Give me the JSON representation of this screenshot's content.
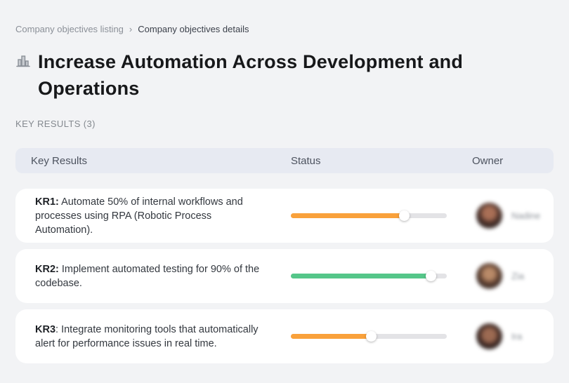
{
  "breadcrumb": {
    "items": [
      {
        "label": "Company objectives listing"
      },
      {
        "label": "Company objectives details"
      }
    ],
    "separator": "›"
  },
  "page": {
    "title": "Increase Automation Across Development and Operations",
    "title_icon": "buildings-icon",
    "section_label": "KEY RESULTS (3)"
  },
  "table": {
    "columns": [
      "Key Results",
      "Status",
      "Owner"
    ],
    "rows": [
      {
        "kr_label": "KR1:",
        "description": " Automate 50% of internal workflows and processes using RPA (Robotic Process Automation).",
        "progress_percent": 73,
        "progress_color": "#F9A13B",
        "owner_name": "Nadine"
      },
      {
        "kr_label": "KR2:",
        "description": " Implement automated testing for 90% of the codebase.",
        "progress_percent": 90,
        "progress_color": "#55C689",
        "owner_name": "Zia"
      },
      {
        "kr_label": "KR3",
        "description": ": Integrate monitoring tools that automatically alert for performance issues in real time.",
        "progress_percent": 52,
        "progress_color": "#F9A13B",
        "owner_name": "Ira"
      }
    ]
  },
  "colors": {
    "page_bg": "#F2F3F5",
    "header_bg": "#E7EAF2",
    "track": "#E3E3E6",
    "accent_orange": "#F9A13B",
    "accent_green": "#55C689"
  }
}
